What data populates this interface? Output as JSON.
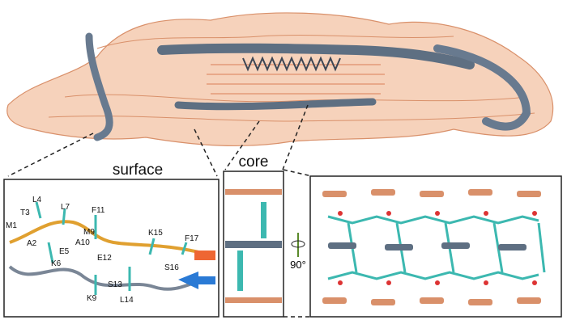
{
  "surface_panel": {
    "title": "surface",
    "residues": [
      "M1",
      "A2",
      "T3",
      "L4",
      "E5",
      "K6",
      "L7",
      "M9",
      "A10",
      "F11",
      "E12",
      "S13",
      "L14",
      "K9",
      "K15",
      "S16",
      "F17"
    ]
  },
  "core_panel": {
    "title": "core"
  },
  "rotation_label": "90°"
}
